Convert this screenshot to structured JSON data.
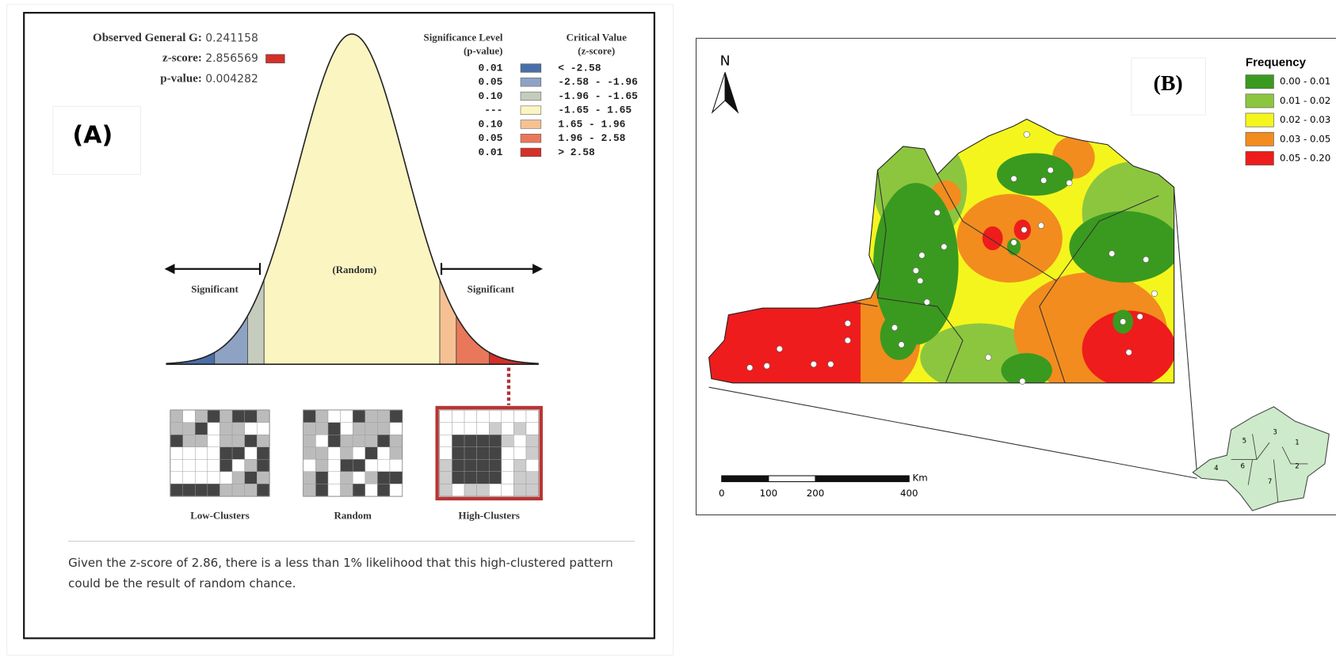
{
  "panel_a": {
    "label": "(A)",
    "stats": [
      {
        "label": "Observed General G:",
        "value": "0.241158"
      },
      {
        "label": "z-score:",
        "value": "2.856569"
      },
      {
        "label": "p-value:",
        "value": "0.004282"
      }
    ],
    "zscore_color": "#d3302a",
    "legend_headers": {
      "significance": [
        "Significance Level",
        "(p-value)"
      ],
      "critical": [
        "Critical Value",
        "(z-score)"
      ]
    },
    "legend_rows": [
      {
        "p": "0.01",
        "z": "< -2.58",
        "color": "#4a6fa8"
      },
      {
        "p": "0.05",
        "z": "-2.58 - -1.96",
        "color": "#8ea3c4"
      },
      {
        "p": "0.10",
        "z": "-1.96 - -1.65",
        "color": "#c5ccbd"
      },
      {
        "p": "---",
        "z": "-1.65 - 1.65",
        "color": "#fbf5c2"
      },
      {
        "p": "0.10",
        "z": "1.65 - 1.96",
        "color": "#f6c192"
      },
      {
        "p": "0.05",
        "z": "1.96 - 2.58",
        "color": "#e9785a"
      },
      {
        "p": "0.01",
        "z": "> 2.58",
        "color": "#d3302a"
      }
    ],
    "curve_labels": {
      "random": "(Random)",
      "left": "Significant",
      "right": "Significant"
    },
    "thumbnails": [
      "Low-Clusters",
      "Random",
      "High-Clusters"
    ],
    "summary": [
      "Given the z-score of 2.86, there is a less than 1% likelihood that this high-clustered pattern",
      "could be the result of random chance."
    ]
  },
  "panel_b": {
    "label": "(B)",
    "north": "N",
    "legend_title": "Frequency",
    "classes": [
      {
        "label": "0.00 - 0.01",
        "color": "#3a9a1f"
      },
      {
        "label": "0.01 - 0.02",
        "color": "#8cc63f"
      },
      {
        "label": "0.02 - 0.03",
        "color": "#f5f51e"
      },
      {
        "label": "0.03 - 0.05",
        "color": "#f28c1e"
      },
      {
        "label": "0.05 - 0.20",
        "color": "#ee1c1c"
      }
    ],
    "scale_unit": "Km",
    "scale_ticks": [
      0,
      100,
      200,
      400
    ],
    "inset_regions": [
      "1",
      "2",
      "3",
      "4",
      "5",
      "6",
      "7"
    ]
  }
}
